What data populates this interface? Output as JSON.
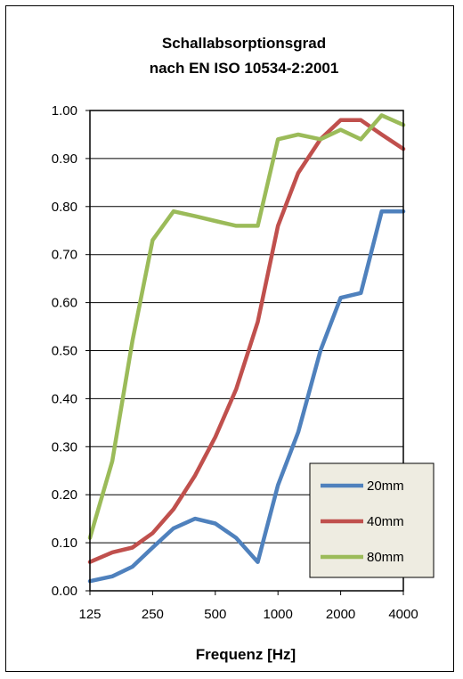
{
  "chart_data": {
    "type": "line",
    "title": [
      "Schallabsorptionsgrad",
      "nach EN ISO 10534-2:2001"
    ],
    "xlabel": "Frequenz [Hz]",
    "ylabel": "",
    "x_scale": "log",
    "x_ticks": [
      125,
      250,
      500,
      1000,
      2000,
      4000
    ],
    "x_tick_labels": [
      "125",
      "250",
      "500",
      "1000",
      "2000",
      "4000"
    ],
    "ylim": [
      0,
      1
    ],
    "y_ticks": [
      0,
      0.1,
      0.2,
      0.3,
      0.4,
      0.5,
      0.6,
      0.7,
      0.8,
      0.9,
      1.0
    ],
    "y_tick_labels": [
      "0.00",
      "0.10",
      "0.20",
      "0.30",
      "0.40",
      "0.50",
      "0.60",
      "0.70",
      "0.80",
      "0.90",
      "1.00"
    ],
    "x": [
      125,
      160,
      200,
      250,
      315,
      400,
      500,
      630,
      800,
      1000,
      1250,
      1600,
      2000,
      2500,
      3150,
      4000
    ],
    "series": [
      {
        "name": "20mm",
        "color": "#4f81bd",
        "values": [
          0.02,
          0.03,
          0.05,
          0.09,
          0.13,
          0.15,
          0.14,
          0.11,
          0.06,
          0.22,
          0.33,
          0.5,
          0.61,
          0.62,
          0.79,
          0.79
        ]
      },
      {
        "name": "40mm",
        "color": "#c0504d",
        "values": [
          0.06,
          0.08,
          0.09,
          0.12,
          0.17,
          0.24,
          0.32,
          0.42,
          0.56,
          0.76,
          0.87,
          0.94,
          0.98,
          0.98,
          0.95,
          0.92
        ]
      },
      {
        "name": "80mm",
        "color": "#9bbb59",
        "values": [
          0.11,
          0.27,
          0.52,
          0.73,
          0.79,
          0.78,
          0.77,
          0.76,
          0.76,
          0.94,
          0.95,
          0.94,
          0.96,
          0.94,
          0.99,
          0.97
        ]
      }
    ],
    "grid": "horizontal",
    "legend_position": "bottom-right"
  }
}
